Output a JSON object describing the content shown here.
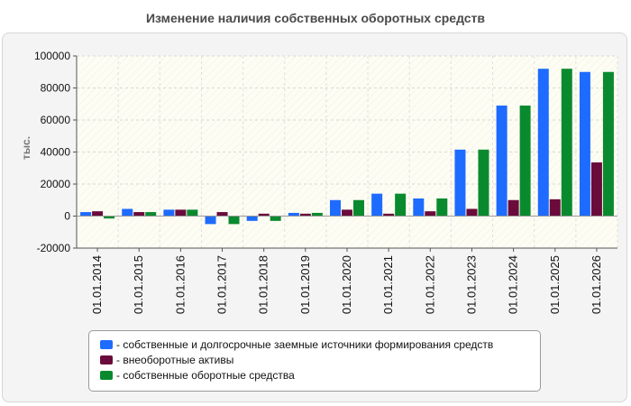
{
  "chart_data": {
    "type": "bar",
    "title": "Изменение наличия собственных оборотных средств",
    "ylabel": "тыс.",
    "xlabel": "",
    "ylim": [
      -20000,
      100000
    ],
    "yticks": [
      100000,
      80000,
      60000,
      40000,
      20000,
      0,
      -20000
    ],
    "grid": true,
    "legend_position": "bottom",
    "categories": [
      "01.01.2014",
      "01.01.2015",
      "01.01.2016",
      "01.01.2017",
      "01.01.2018",
      "01.01.2019",
      "01.01.2020",
      "01.01.2021",
      "01.01.2022",
      "01.01.2023",
      "01.01.2024",
      "01.01.2025",
      "01.01.2026"
    ],
    "series": [
      {
        "name": "собственные и долгосрочные заемные источники формирования средств",
        "color": "#1e6bff",
        "values": [
          2500,
          4500,
          4000,
          -5000,
          -3000,
          2000,
          10000,
          14000,
          11000,
          41500,
          69000,
          92000,
          90000
        ]
      },
      {
        "name": "внеоборотные активы",
        "color": "#6b0b3b",
        "values": [
          3000,
          2500,
          4000,
          2500,
          1500,
          1500,
          4000,
          1500,
          3000,
          4500,
          10000,
          10500,
          33500
        ]
      },
      {
        "name": "собственные оборотные средства",
        "color": "#0a8a2e",
        "values": [
          -1500,
          2500,
          4000,
          -5000,
          -3000,
          2000,
          10000,
          14000,
          11000,
          41500,
          69000,
          92000,
          90000
        ]
      }
    ]
  }
}
